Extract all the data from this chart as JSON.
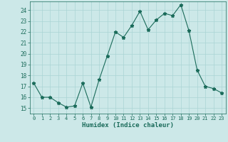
{
  "x": [
    0,
    1,
    2,
    3,
    4,
    5,
    6,
    7,
    8,
    9,
    10,
    11,
    12,
    13,
    14,
    15,
    16,
    17,
    18,
    19,
    20,
    21,
    22,
    23
  ],
  "y": [
    17.3,
    16.0,
    16.0,
    15.5,
    15.1,
    15.2,
    17.3,
    15.1,
    17.6,
    19.8,
    22.0,
    21.5,
    22.6,
    23.9,
    22.2,
    23.1,
    23.7,
    23.5,
    24.5,
    22.1,
    18.5,
    17.0,
    16.8,
    16.4
  ],
  "xlabel": "Humidex (Indice chaleur)",
  "ylim": [
    14.5,
    24.8
  ],
  "xlim": [
    -0.5,
    23.5
  ],
  "yticks": [
    15,
    16,
    17,
    18,
    19,
    20,
    21,
    22,
    23,
    24
  ],
  "xticks": [
    0,
    1,
    2,
    3,
    4,
    5,
    6,
    7,
    8,
    9,
    10,
    11,
    12,
    13,
    14,
    15,
    16,
    17,
    18,
    19,
    20,
    21,
    22,
    23
  ],
  "line_color": "#1a6b5a",
  "marker": "*",
  "bg_color": "#cce8e8",
  "grid_color": "#aad4d4",
  "font_color": "#1a6b5a"
}
